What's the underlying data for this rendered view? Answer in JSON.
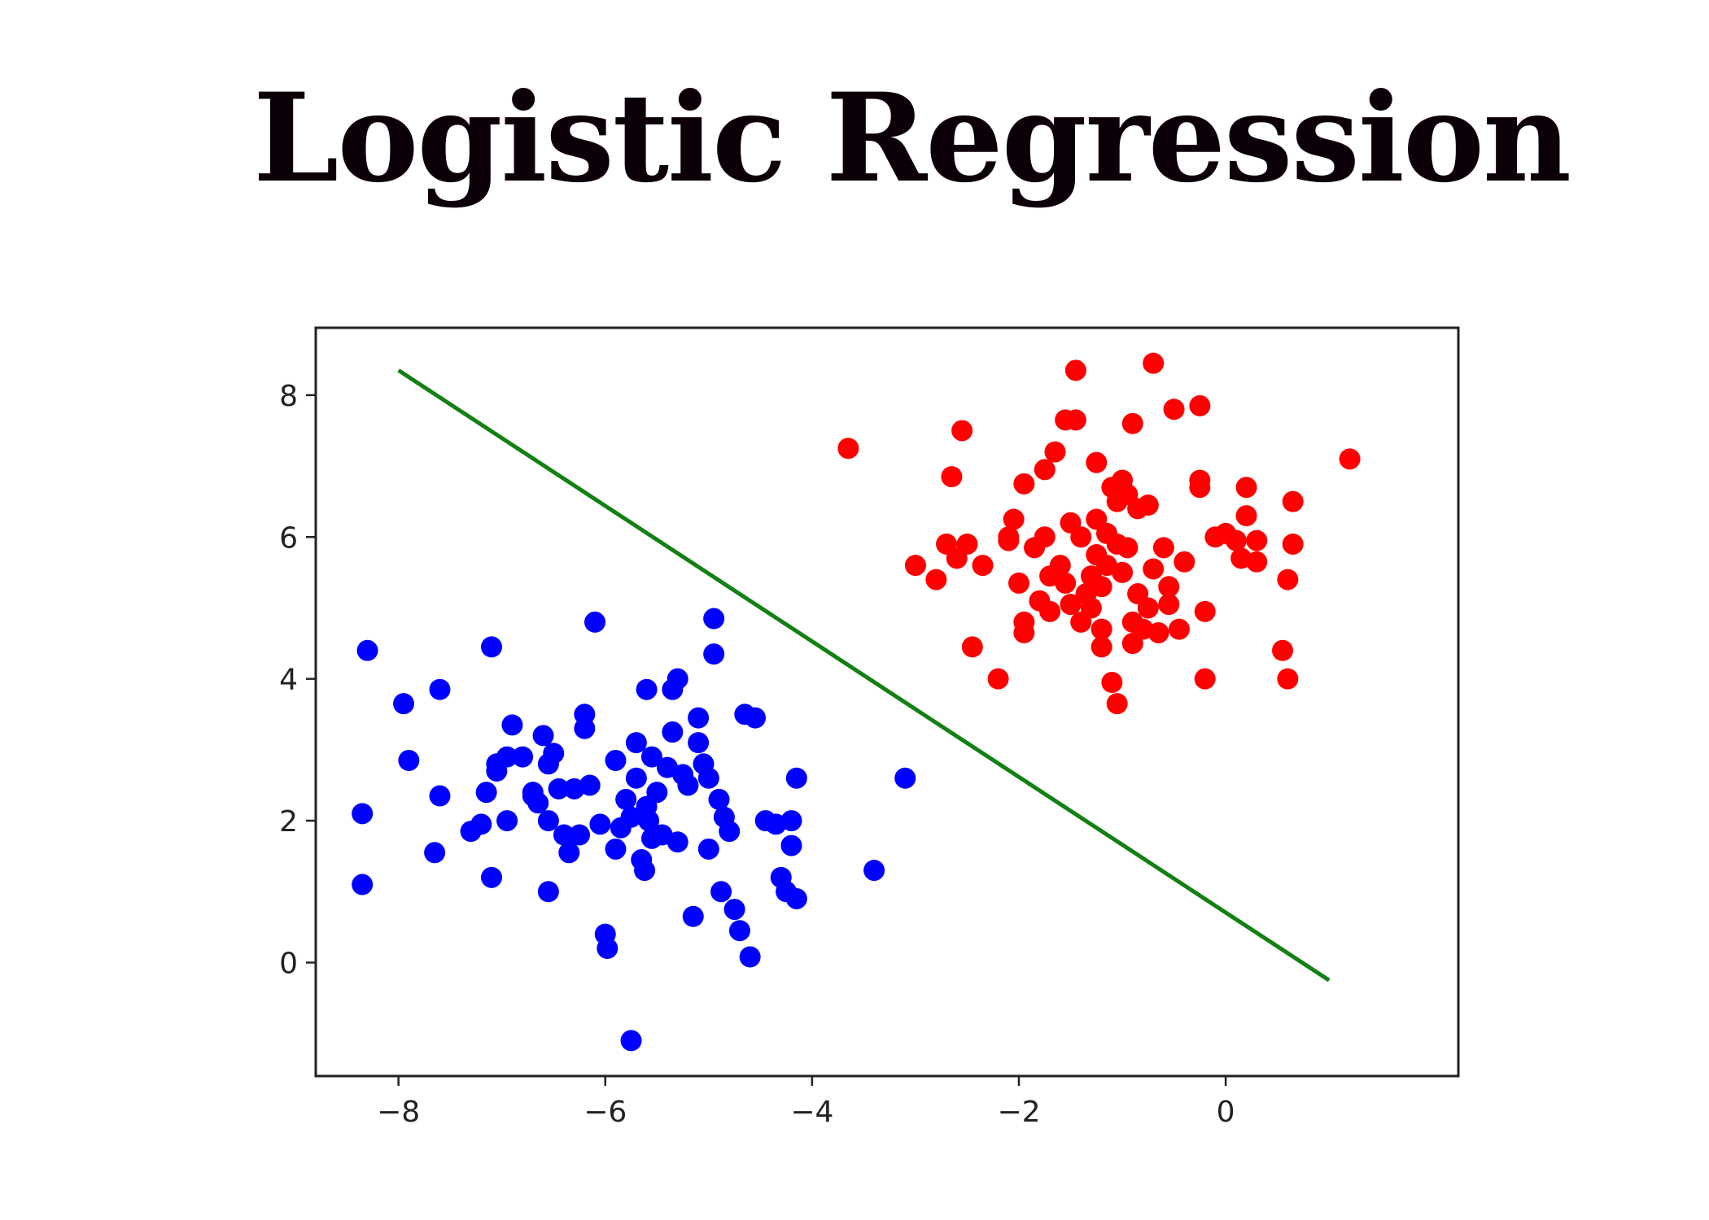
{
  "title": "Logistic Regression",
  "chart_data": {
    "type": "scatter",
    "title": "",
    "xlabel": "",
    "ylabel": "",
    "xlim": [
      -8.8,
      2.25
    ],
    "ylim": [
      -1.6,
      8.95
    ],
    "xticks": [
      -8,
      -6,
      -4,
      -2,
      0
    ],
    "xtick_labels": [
      "−8",
      "−6",
      "−4",
      "−2",
      "0"
    ],
    "yticks": [
      0,
      2,
      4,
      6,
      8
    ],
    "ytick_labels": [
      "0",
      "2",
      "4",
      "6",
      "8"
    ],
    "grid": false,
    "colors": {
      "class_a": "#0000ff",
      "class_b": "#ff0000",
      "boundary": "#138013",
      "axes": "#222222"
    },
    "series": [
      {
        "color": "#0000ff",
        "points": [
          [
            -8.3,
            4.4
          ],
          [
            -8.35,
            2.1
          ],
          [
            -8.35,
            1.1
          ],
          [
            -7.95,
            3.65
          ],
          [
            -7.9,
            2.85
          ],
          [
            -7.6,
            3.85
          ],
          [
            -7.6,
            2.35
          ],
          [
            -7.65,
            1.55
          ],
          [
            -7.3,
            1.85
          ],
          [
            -7.2,
            1.95
          ],
          [
            -7.15,
            2.4
          ],
          [
            -7.1,
            4.45
          ],
          [
            -7.1,
            1.2
          ],
          [
            -7.05,
            2.8
          ],
          [
            -6.95,
            2.9
          ],
          [
            -6.95,
            2.0
          ],
          [
            -6.9,
            3.35
          ],
          [
            -6.8,
            2.9
          ],
          [
            -6.7,
            2.35
          ],
          [
            -6.65,
            2.25
          ],
          [
            -6.6,
            3.2
          ],
          [
            -6.55,
            2.8
          ],
          [
            -6.55,
            1.0
          ],
          [
            -6.5,
            2.95
          ],
          [
            -6.45,
            2.45
          ],
          [
            -6.4,
            1.8
          ],
          [
            -6.35,
            1.55
          ],
          [
            -6.3,
            2.45
          ],
          [
            -6.25,
            1.8
          ],
          [
            -6.2,
            3.5
          ],
          [
            -6.2,
            3.3
          ],
          [
            -6.15,
            2.5
          ],
          [
            -6.1,
            4.8
          ],
          [
            -6.05,
            1.95
          ],
          [
            -6.0,
            0.4
          ],
          [
            -5.98,
            0.2
          ],
          [
            -5.9,
            2.85
          ],
          [
            -5.85,
            1.9
          ],
          [
            -5.8,
            2.3
          ],
          [
            -5.75,
            2.05
          ],
          [
            -5.7,
            3.1
          ],
          [
            -5.7,
            2.6
          ],
          [
            -5.65,
            1.45
          ],
          [
            -5.62,
            1.3
          ],
          [
            -5.6,
            3.85
          ],
          [
            -5.58,
            2.0
          ],
          [
            -5.55,
            2.9
          ],
          [
            -5.5,
            2.4
          ],
          [
            -5.45,
            1.8
          ],
          [
            -5.4,
            2.75
          ],
          [
            -5.35,
            3.85
          ],
          [
            -5.35,
            3.25
          ],
          [
            -5.3,
            4.0
          ],
          [
            -5.3,
            1.7
          ],
          [
            -5.25,
            2.65
          ],
          [
            -5.2,
            2.5
          ],
          [
            -5.15,
            0.65
          ],
          [
            -5.1,
            3.45
          ],
          [
            -5.1,
            3.1
          ],
          [
            -5.05,
            2.8
          ],
          [
            -5.0,
            2.6
          ],
          [
            -4.95,
            4.85
          ],
          [
            -4.95,
            4.35
          ],
          [
            -4.9,
            2.3
          ],
          [
            -4.88,
            1.0
          ],
          [
            -4.85,
            2.05
          ],
          [
            -4.8,
            1.85
          ],
          [
            -4.75,
            0.75
          ],
          [
            -4.7,
            0.45
          ],
          [
            -4.65,
            3.5
          ],
          [
            -4.6,
            0.08
          ],
          [
            -4.55,
            3.45
          ],
          [
            -4.45,
            2.0
          ],
          [
            -4.35,
            1.95
          ],
          [
            -4.3,
            1.2
          ],
          [
            -4.25,
            1.0
          ],
          [
            -4.2,
            2.0
          ],
          [
            -4.2,
            1.65
          ],
          [
            -4.15,
            2.6
          ],
          [
            -4.15,
            0.9
          ],
          [
            -5.75,
            -1.1
          ],
          [
            -3.4,
            1.3
          ],
          [
            -3.1,
            2.6
          ],
          [
            -5.9,
            1.6
          ],
          [
            -5.55,
            1.75
          ],
          [
            -6.7,
            2.4
          ],
          [
            -7.05,
            2.7
          ],
          [
            -6.55,
            2.0
          ],
          [
            -5.0,
            1.6
          ],
          [
            -5.6,
            2.2
          ]
        ]
      },
      {
        "color": "#ff0000",
        "points": [
          [
            -3.65,
            7.25
          ],
          [
            -3.0,
            5.6
          ],
          [
            -2.8,
            5.4
          ],
          [
            -2.7,
            5.9
          ],
          [
            -2.65,
            6.85
          ],
          [
            -2.6,
            5.7
          ],
          [
            -2.55,
            7.5
          ],
          [
            -2.5,
            5.9
          ],
          [
            -2.45,
            4.45
          ],
          [
            -2.35,
            5.6
          ],
          [
            -2.2,
            4.0
          ],
          [
            -2.1,
            6.0
          ],
          [
            -2.05,
            6.25
          ],
          [
            -2.0,
            5.35
          ],
          [
            -1.95,
            4.8
          ],
          [
            -1.95,
            4.65
          ],
          [
            -1.95,
            6.75
          ],
          [
            -1.85,
            5.85
          ],
          [
            -1.75,
            6.0
          ],
          [
            -1.7,
            5.45
          ],
          [
            -1.7,
            4.95
          ],
          [
            -1.65,
            7.2
          ],
          [
            -1.6,
            5.6
          ],
          [
            -1.55,
            7.65
          ],
          [
            -1.5,
            6.2
          ],
          [
            -1.5,
            5.05
          ],
          [
            -1.45,
            8.35
          ],
          [
            -1.45,
            7.65
          ],
          [
            -1.4,
            6.0
          ],
          [
            -1.4,
            4.8
          ],
          [
            -1.3,
            5.0
          ],
          [
            -1.3,
            5.45
          ],
          [
            -1.25,
            7.05
          ],
          [
            -1.25,
            6.25
          ],
          [
            -1.2,
            5.3
          ],
          [
            -1.2,
            4.7
          ],
          [
            -1.2,
            4.45
          ],
          [
            -1.15,
            5.6
          ],
          [
            -1.15,
            6.05
          ],
          [
            -1.1,
            6.7
          ],
          [
            -1.1,
            3.95
          ],
          [
            -1.05,
            3.65
          ],
          [
            -1.05,
            6.5
          ],
          [
            -1.0,
            6.8
          ],
          [
            -1.0,
            5.5
          ],
          [
            -0.95,
            6.6
          ],
          [
            -0.9,
            7.6
          ],
          [
            -0.9,
            4.8
          ],
          [
            -0.9,
            4.5
          ],
          [
            -0.85,
            6.4
          ],
          [
            -0.85,
            5.2
          ],
          [
            -0.8,
            4.7
          ],
          [
            -0.75,
            6.45
          ],
          [
            -0.7,
            8.45
          ],
          [
            -0.7,
            5.55
          ],
          [
            -0.65,
            4.65
          ],
          [
            -0.6,
            5.85
          ],
          [
            -0.55,
            5.3
          ],
          [
            -0.55,
            5.05
          ],
          [
            -0.5,
            7.8
          ],
          [
            -0.45,
            4.7
          ],
          [
            -0.4,
            5.65
          ],
          [
            -0.25,
            7.85
          ],
          [
            -0.25,
            6.7
          ],
          [
            -0.25,
            6.8
          ],
          [
            -0.2,
            4.95
          ],
          [
            -0.2,
            4.0
          ],
          [
            -0.1,
            6.0
          ],
          [
            0.0,
            6.05
          ],
          [
            0.1,
            5.95
          ],
          [
            0.15,
            5.7
          ],
          [
            0.2,
            6.3
          ],
          [
            0.2,
            6.7
          ],
          [
            0.3,
            5.95
          ],
          [
            0.3,
            5.65
          ],
          [
            0.55,
            4.4
          ],
          [
            0.6,
            5.4
          ],
          [
            0.6,
            4.0
          ],
          [
            0.65,
            5.9
          ],
          [
            0.65,
            6.5
          ],
          [
            1.2,
            7.1
          ],
          [
            -1.75,
            6.95
          ],
          [
            -1.35,
            5.2
          ],
          [
            -0.95,
            5.85
          ],
          [
            -1.55,
            5.35
          ],
          [
            -1.25,
            5.75
          ],
          [
            -1.8,
            5.1
          ],
          [
            -1.05,
            5.9
          ],
          [
            -2.1,
            5.95
          ],
          [
            -0.75,
            5.0
          ]
        ]
      }
    ],
    "boundary_line": {
      "x": [
        -8.0,
        1.0
      ],
      "y": [
        8.35,
        -0.25
      ]
    }
  }
}
